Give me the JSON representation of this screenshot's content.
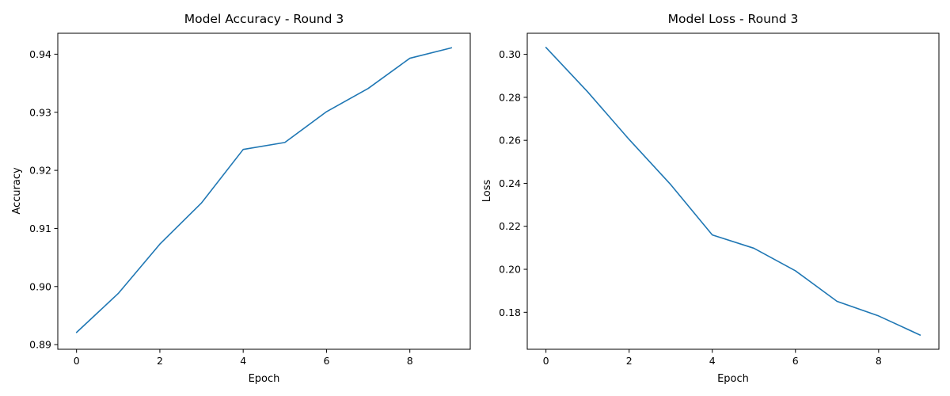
{
  "chart_data": [
    {
      "type": "line",
      "title": "Model Accuracy - Round 3",
      "xlabel": "Epoch",
      "ylabel": "Accuracy",
      "xlim": [
        -0.45,
        9.45
      ],
      "ylim": [
        0.8892,
        0.9436
      ],
      "xticks": [
        0,
        2,
        4,
        6,
        8
      ],
      "xtick_labels": [
        "0",
        "2",
        "4",
        "6",
        "8"
      ],
      "yticks": [
        0.89,
        0.9,
        0.91,
        0.92,
        0.93,
        0.94
      ],
      "ytick_labels": [
        "0.89",
        "0.90",
        "0.91",
        "0.92",
        "0.93",
        "0.94"
      ],
      "grid": false,
      "color": "#1f77b4",
      "series": [
        {
          "x": [
            0,
            1,
            2,
            3,
            4,
            5,
            6,
            7,
            8,
            9
          ],
          "values": [
            0.8921,
            0.8988,
            0.9073,
            0.9144,
            0.9236,
            0.9248,
            0.9301,
            0.9341,
            0.9393,
            0.9411
          ]
        }
      ]
    },
    {
      "type": "line",
      "title": "Model Loss - Round 3",
      "xlabel": "Epoch",
      "ylabel": "Loss",
      "xlim": [
        -0.45,
        9.45
      ],
      "ylim": [
        0.1628,
        0.3098
      ],
      "xticks": [
        0,
        2,
        4,
        6,
        8
      ],
      "xtick_labels": [
        "0",
        "2",
        "4",
        "6",
        "8"
      ],
      "yticks": [
        0.18,
        0.2,
        0.22,
        0.24,
        0.26,
        0.28,
        0.3
      ],
      "ytick_labels": [
        "0.18",
        "0.20",
        "0.22",
        "0.24",
        "0.26",
        "0.28",
        "0.30"
      ],
      "grid": false,
      "color": "#1f77b4",
      "series": [
        {
          "x": [
            0,
            1,
            2,
            3,
            4,
            5,
            6,
            7,
            8,
            9
          ],
          "values": [
            0.3032,
            0.2826,
            0.2604,
            0.2394,
            0.216,
            0.2098,
            0.1993,
            0.1851,
            0.1783,
            0.1694
          ]
        }
      ]
    }
  ]
}
